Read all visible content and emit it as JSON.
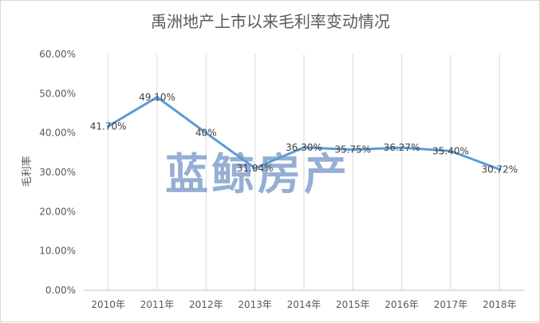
{
  "chart_data": {
    "type": "line",
    "title": "禹洲地产上市以来毛利率变动情况",
    "xlabel": "",
    "ylabel": "毛利率",
    "categories": [
      "2010年",
      "2011年",
      "2012年",
      "2013年",
      "2014年",
      "2015年",
      "2016年",
      "2017年",
      "2018年"
    ],
    "values": [
      41.7,
      49.1,
      40.0,
      31.04,
      36.3,
      35.75,
      36.27,
      35.4,
      30.72
    ],
    "data_labels": [
      "41.70%",
      "49.10%",
      "40%",
      "31.04%",
      "36.30%",
      "35.75%",
      "36.27%",
      "35.40%",
      "30.72%"
    ],
    "ylim": [
      0,
      60
    ],
    "yticks": [
      "0.00%",
      "10.00%",
      "20.00%",
      "30.00%",
      "40.00%",
      "50.00%",
      "60.00%"
    ],
    "grid": "vertical",
    "legend": "none",
    "line_color": "#5b9bd5",
    "grid_color": "#d9d9d9"
  },
  "watermark": "蓝鲸房产"
}
